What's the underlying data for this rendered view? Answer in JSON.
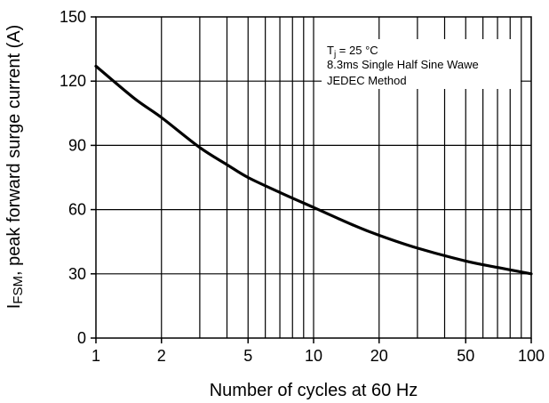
{
  "chart_data": {
    "type": "line",
    "xlabel": "Number of cycles at 60 Hz",
    "ylabel_main": "I",
    "ylabel_sub": "FSM",
    "ylabel_rest": ", peak forward surge current (A)",
    "x_scale": "log",
    "xlim": [
      1,
      100
    ],
    "ylim": [
      0,
      150
    ],
    "grid": true,
    "x_major_ticks": [
      1,
      2,
      5,
      10,
      20,
      50,
      100
    ],
    "x_major_tick_labels": [
      "1",
      "2",
      "5",
      "10",
      "20",
      "50",
      "100"
    ],
    "y_ticks": [
      0,
      30,
      60,
      90,
      120,
      150
    ],
    "y_tick_labels": [
      "0",
      "30",
      "60",
      "90",
      "120",
      "150"
    ],
    "annotation_lines": {
      "line1_main": "T",
      "line1_sub": "j",
      "line1_rest": " = 25 °C",
      "line2": "8.3ms Single Half Sine Wawe",
      "line3": "JEDEC Method"
    },
    "annotation_placement": "top-right",
    "series": [
      {
        "x": [
          1,
          1.5,
          2,
          3,
          4,
          5,
          7,
          10,
          15,
          20,
          30,
          50,
          70,
          100
        ],
        "y": [
          127,
          112,
          103,
          89,
          81,
          75,
          68,
          61,
          53,
          48,
          42,
          36,
          33,
          30
        ]
      }
    ]
  }
}
